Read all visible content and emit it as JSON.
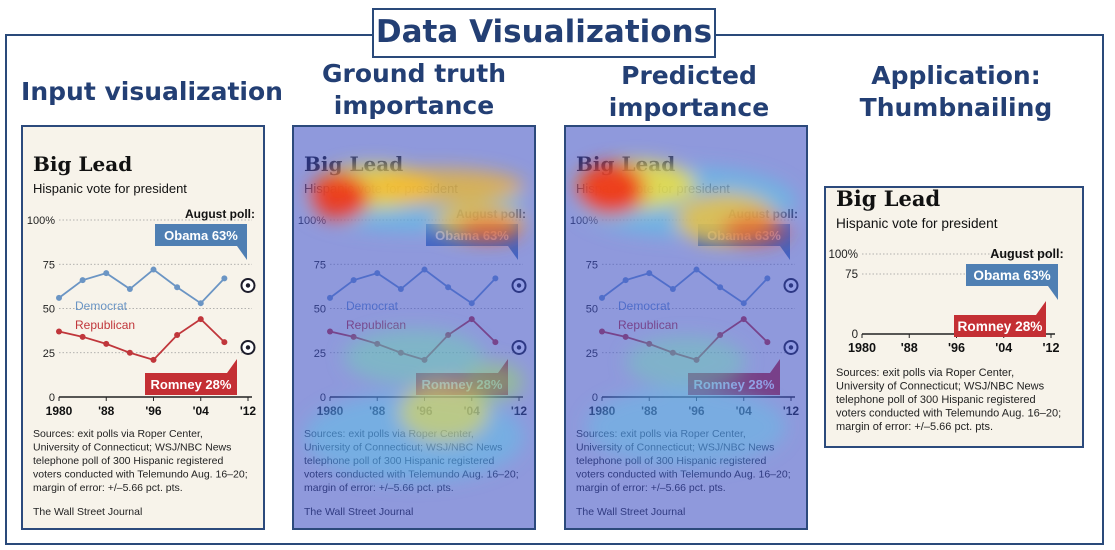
{
  "header": {
    "title": "Data Visualizations"
  },
  "columns": {
    "input": {
      "title": "Input visualization"
    },
    "ground_truth": {
      "title_line1": "Ground truth",
      "title_line2": "importance"
    },
    "predicted": {
      "title_line1": "Predicted",
      "title_line2": "importance"
    },
    "application": {
      "title_line1": "Application:",
      "title_line2": "Thumbnailing"
    }
  },
  "chart": {
    "title": "Big Lead",
    "subtitle": "Hispanic vote for president",
    "callout_header": "August poll:",
    "obama_label": "Obama 63%",
    "romney_label": "Romney 28%",
    "democrat_label": "Democrat",
    "republican_label": "Republican",
    "y_ticks": [
      "100%",
      "75",
      "50",
      "25",
      "0"
    ],
    "x_ticks": [
      "1980",
      "'88",
      "'96",
      "'04",
      "'12"
    ],
    "sources_lines": [
      "Sources: exit polls via Roper Center,",
      "University of Connecticut; WSJ/NBC News",
      "telephone poll of 300 Hispanic registered",
      "voters conducted with Telemundo Aug. 16–20;",
      "margin of error: +/–5.66 pct. pts."
    ],
    "credit": "The Wall Street Journal",
    "colors": {
      "democrat": "#6b95c4",
      "republican": "#c0363b",
      "callout_blue": "#4f7fb3",
      "callout_red": "#c42f34",
      "paper": "#f7f3ea"
    }
  },
  "chart_data": {
    "type": "line",
    "title": "Big Lead",
    "subtitle": "Hispanic vote for president",
    "x": [
      1980,
      1984,
      1988,
      1992,
      1996,
      2000,
      2004,
      2008
    ],
    "series": [
      {
        "name": "Democrat",
        "values": [
          56,
          66,
          70,
          61,
          72,
          62,
          53,
          67
        ]
      },
      {
        "name": "Republican",
        "values": [
          37,
          34,
          30,
          25,
          21,
          35,
          44,
          31
        ]
      }
    ],
    "poll_2012": {
      "Obama": 63,
      "Romney": 28
    },
    "ylim": [
      0,
      100
    ],
    "xlim": [
      1980,
      2012
    ]
  }
}
